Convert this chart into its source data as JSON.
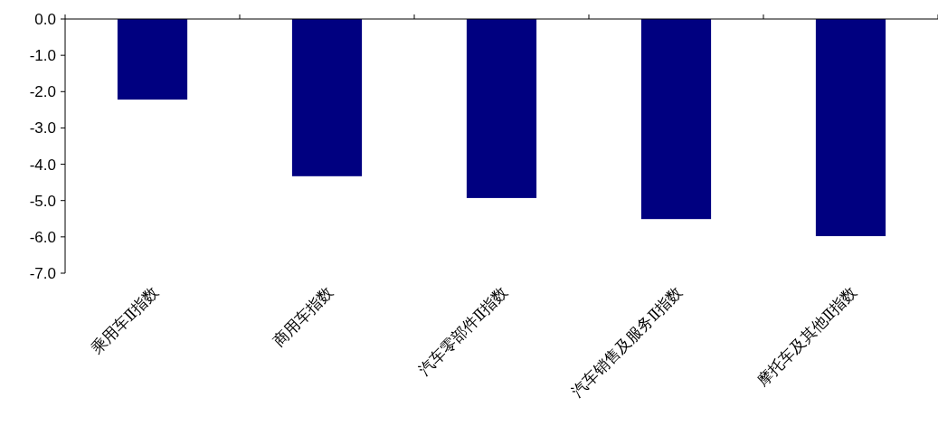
{
  "chart_data": {
    "type": "bar",
    "categories": [
      "乘用车Ⅱ指数",
      "商用车指数",
      "汽车零部件Ⅱ指数",
      "汽车销售及服务Ⅱ指数",
      "摩托车及其他Ⅱ指数"
    ],
    "values": [
      -2.22,
      -4.33,
      -4.93,
      -5.51,
      -5.98
    ],
    "color": "#000080",
    "ylim": [
      -7,
      0
    ],
    "yticks": [
      {
        "value": 0,
        "label": "0.0"
      },
      {
        "value": -1,
        "label": "-1.0"
      },
      {
        "value": -2,
        "label": "-2.0"
      },
      {
        "value": -3,
        "label": "-3.0"
      },
      {
        "value": -4,
        "label": "-4.0"
      },
      {
        "value": -5,
        "label": "-5.0"
      },
      {
        "value": -6,
        "label": "-6.0"
      },
      {
        "value": -7,
        "label": "-7.0"
      }
    ],
    "grid": false
  }
}
